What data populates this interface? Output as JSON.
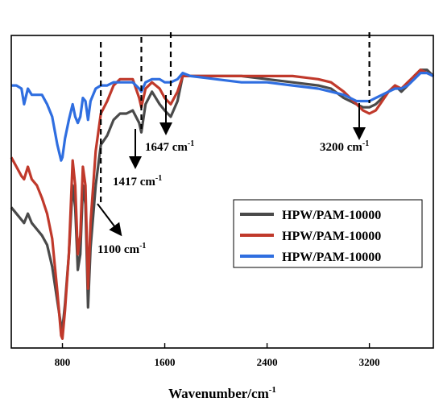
{
  "chart_data": {
    "type": "line",
    "xlabel": "Wavenumber/cm",
    "xlabel_sup": "-1",
    "xlim": [
      400,
      3700
    ],
    "ylim": [
      0,
      1
    ],
    "yticks_shown": false,
    "xticks": [
      {
        "value": 800,
        "label": "800"
      },
      {
        "value": 1600,
        "label": "1600"
      },
      {
        "value": 2400,
        "label": "2400"
      },
      {
        "value": 3200,
        "label": "3200"
      }
    ],
    "legend_position": "bottom-right",
    "series": [
      {
        "name": "HPW/PAM-10000",
        "color": "#4a4a4a",
        "x": [
          400,
          440,
          480,
          500,
          530,
          560,
          600,
          640,
          680,
          720,
          760,
          790,
          800,
          820,
          850,
          880,
          900,
          920,
          940,
          960,
          980,
          1000,
          1020,
          1060,
          1100,
          1150,
          1200,
          1250,
          1300,
          1350,
          1400,
          1417,
          1450,
          1500,
          1560,
          1600,
          1647,
          1700,
          1740,
          1800,
          2000,
          2200,
          2400,
          2600,
          2800,
          2900,
          3000,
          3100,
          3150,
          3200,
          3250,
          3300,
          3350,
          3400,
          3450,
          3500,
          3550,
          3600,
          3650,
          3700
        ],
        "y": [
          0.45,
          0.43,
          0.41,
          0.4,
          0.43,
          0.4,
          0.38,
          0.36,
          0.33,
          0.26,
          0.15,
          0.07,
          0.06,
          0.14,
          0.3,
          0.52,
          0.45,
          0.25,
          0.3,
          0.52,
          0.46,
          0.13,
          0.32,
          0.52,
          0.65,
          0.68,
          0.73,
          0.75,
          0.75,
          0.76,
          0.72,
          0.69,
          0.78,
          0.82,
          0.78,
          0.76,
          0.74,
          0.79,
          0.87,
          0.87,
          0.87,
          0.87,
          0.86,
          0.85,
          0.84,
          0.83,
          0.8,
          0.78,
          0.77,
          0.77,
          0.78,
          0.8,
          0.82,
          0.84,
          0.82,
          0.84,
          0.87,
          0.89,
          0.89,
          0.87
        ]
      },
      {
        "name": "HPW/PAM-10000",
        "color": "#c0392b",
        "x": [
          400,
          440,
          480,
          500,
          530,
          560,
          600,
          640,
          680,
          720,
          760,
          790,
          800,
          820,
          850,
          880,
          900,
          920,
          940,
          960,
          980,
          1000,
          1020,
          1060,
          1100,
          1150,
          1200,
          1250,
          1300,
          1350,
          1400,
          1417,
          1450,
          1500,
          1560,
          1600,
          1647,
          1700,
          1740,
          1800,
          2000,
          2200,
          2400,
          2600,
          2800,
          2900,
          3000,
          3100,
          3150,
          3200,
          3250,
          3300,
          3350,
          3400,
          3450,
          3500,
          3550,
          3600,
          3650,
          3700
        ],
        "y": [
          0.61,
          0.58,
          0.55,
          0.54,
          0.58,
          0.54,
          0.52,
          0.48,
          0.43,
          0.35,
          0.18,
          0.04,
          0.03,
          0.12,
          0.3,
          0.6,
          0.52,
          0.3,
          0.36,
          0.58,
          0.52,
          0.19,
          0.4,
          0.63,
          0.75,
          0.79,
          0.84,
          0.86,
          0.86,
          0.86,
          0.8,
          0.77,
          0.83,
          0.85,
          0.83,
          0.8,
          0.78,
          0.82,
          0.87,
          0.87,
          0.87,
          0.87,
          0.87,
          0.87,
          0.86,
          0.85,
          0.82,
          0.78,
          0.76,
          0.75,
          0.76,
          0.79,
          0.82,
          0.84,
          0.83,
          0.85,
          0.87,
          0.89,
          0.88,
          0.87
        ]
      },
      {
        "name": "HPW/PAM-10000",
        "color": "#2f6ee0",
        "x": [
          400,
          440,
          480,
          500,
          530,
          560,
          600,
          640,
          680,
          720,
          760,
          790,
          800,
          820,
          850,
          880,
          900,
          920,
          940,
          960,
          980,
          1000,
          1020,
          1060,
          1100,
          1150,
          1200,
          1250,
          1300,
          1350,
          1400,
          1417,
          1450,
          1500,
          1560,
          1600,
          1647,
          1700,
          1740,
          1800,
          2000,
          2200,
          2400,
          2600,
          2800,
          2900,
          3000,
          3100,
          3150,
          3200,
          3250,
          3300,
          3350,
          3400,
          3450,
          3500,
          3550,
          3600,
          3650,
          3700
        ],
        "y": [
          0.84,
          0.84,
          0.83,
          0.78,
          0.83,
          0.81,
          0.81,
          0.81,
          0.78,
          0.74,
          0.65,
          0.6,
          0.61,
          0.67,
          0.73,
          0.78,
          0.74,
          0.72,
          0.74,
          0.8,
          0.79,
          0.73,
          0.79,
          0.83,
          0.84,
          0.84,
          0.85,
          0.85,
          0.85,
          0.85,
          0.83,
          0.82,
          0.85,
          0.86,
          0.86,
          0.85,
          0.85,
          0.86,
          0.88,
          0.87,
          0.86,
          0.85,
          0.85,
          0.84,
          0.83,
          0.82,
          0.81,
          0.79,
          0.79,
          0.79,
          0.8,
          0.81,
          0.82,
          0.83,
          0.83,
          0.84,
          0.86,
          0.88,
          0.88,
          0.87
        ]
      }
    ],
    "annotations": [
      {
        "id": "a1100",
        "text": "1100 cm",
        "sup": "-1",
        "x": 1100
      },
      {
        "id": "a1417",
        "text": "1417 cm",
        "sup": "-1",
        "x": 1417
      },
      {
        "id": "a1647",
        "text": "1647 cm",
        "sup": "-1",
        "x": 1647
      },
      {
        "id": "a3200",
        "text": "3200 cm",
        "sup": "-1",
        "x": 3200
      }
    ]
  }
}
